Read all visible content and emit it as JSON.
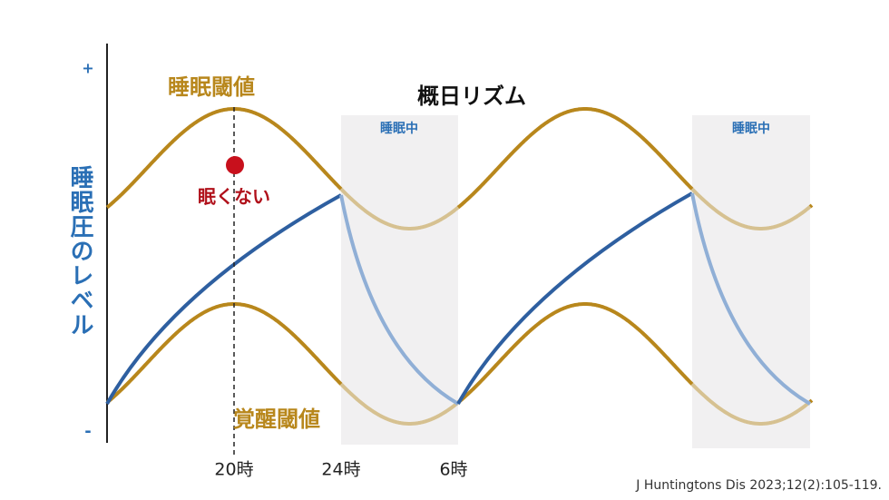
{
  "axis": {
    "top": "+",
    "bottom": "-",
    "label": "睡眠圧のレベル"
  },
  "title": "概日リズム",
  "upper_label": "睡眠閾値",
  "lower_label": "覚醒閾値",
  "point_label": "眠くない",
  "sleep_bands": [
    "睡眠中",
    "睡眠中"
  ],
  "x_labels": [
    "20時",
    "24時",
    "6時"
  ],
  "citation": "J Huntingtons Dis 2023;12(2):105-119."
}
